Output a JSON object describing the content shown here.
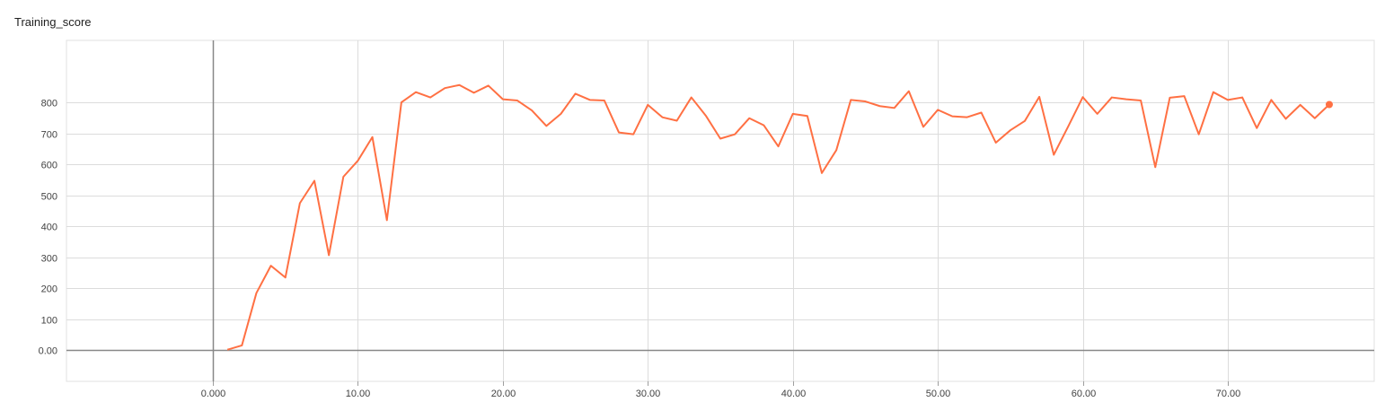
{
  "chart_data": {
    "type": "line",
    "title": "Training_score",
    "xlabel": "",
    "ylabel": "",
    "xlim": [
      -10.1,
      80.1
    ],
    "ylim": [
      -100,
      1000
    ],
    "x_ticks": [
      0,
      10,
      20,
      30,
      40,
      50,
      60,
      70
    ],
    "x_tick_labels": [
      "0.000",
      "10.00",
      "20.00",
      "30.00",
      "40.00",
      "50.00",
      "60.00",
      "70.00"
    ],
    "y_ticks": [
      0,
      100,
      200,
      300,
      400,
      500,
      600,
      700,
      800
    ],
    "y_tick_labels": [
      "0.00",
      "100",
      "200",
      "300",
      "400",
      "500",
      "600",
      "700",
      "800"
    ],
    "grid": true,
    "series": [
      {
        "color": "#ff7043",
        "x": [
          1,
          2,
          3,
          4,
          5,
          6,
          7,
          8,
          9,
          10,
          11,
          12,
          13,
          14,
          15,
          16,
          17,
          18,
          19,
          20,
          21,
          22,
          23,
          24,
          25,
          26,
          27,
          28,
          29,
          30,
          31,
          32,
          33,
          34,
          35,
          36,
          37,
          38,
          39,
          40,
          41,
          42,
          43,
          44,
          45,
          46,
          47,
          48,
          49,
          50,
          51,
          52,
          53,
          54,
          55,
          56,
          57,
          58,
          59,
          60,
          61,
          62,
          63,
          64,
          65,
          66,
          67,
          68,
          69,
          70,
          71,
          72,
          73,
          74,
          75,
          76,
          77
        ],
        "y": [
          2,
          16,
          185,
          273,
          235,
          475,
          547,
          307,
          560,
          612,
          688,
          420,
          800,
          833,
          816,
          846,
          856,
          831,
          854,
          810,
          806,
          774,
          724,
          763,
          828,
          808,
          806,
          703,
          697,
          792,
          752,
          741,
          816,
          757,
          683,
          697,
          749,
          726,
          658,
          763,
          756,
          572,
          646,
          808,
          803,
          788,
          782,
          836,
          721,
          776,
          755,
          752,
          767,
          670,
          710,
          740,
          818,
          631,
          723,
          817,
          763,
          816,
          810,
          806,
          591,
          815,
          820,
          697,
          833,
          808,
          816,
          717,
          808,
          747,
          792,
          749,
          793
        ]
      }
    ]
  }
}
